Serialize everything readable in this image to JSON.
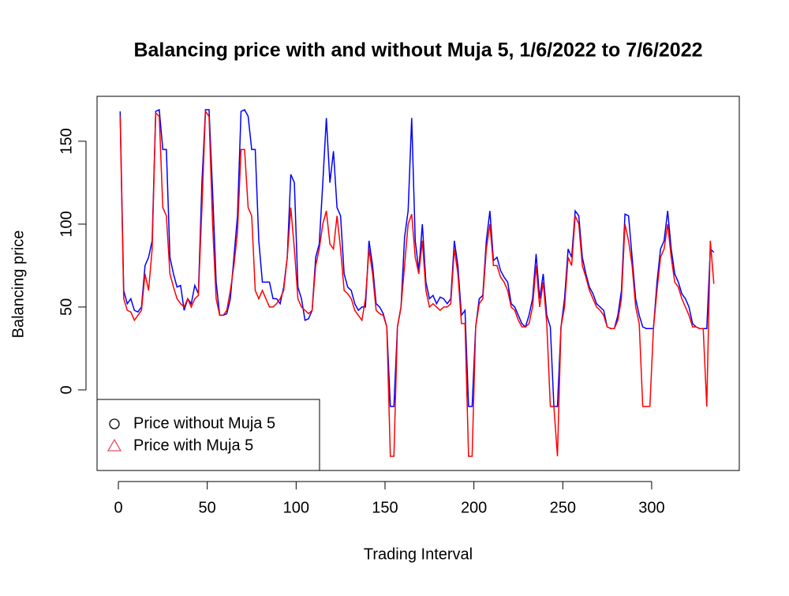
{
  "chart_data": {
    "type": "line",
    "title": "Balancing price with and without Muja 5, 1/6/2022 to 7/6/2022",
    "x_label": "Trading Interval",
    "y_label": "Balancing price",
    "x": [
      1,
      3,
      5,
      7,
      9,
      11,
      13,
      15,
      17,
      19,
      21,
      23,
      25,
      27,
      29,
      31,
      33,
      35,
      37,
      39,
      41,
      43,
      45,
      47,
      49,
      51,
      53,
      55,
      57,
      59,
      61,
      63,
      65,
      67,
      69,
      71,
      73,
      75,
      77,
      79,
      81,
      83,
      85,
      87,
      89,
      91,
      93,
      95,
      97,
      99,
      101,
      103,
      105,
      107,
      109,
      111,
      113,
      115,
      117,
      119,
      121,
      123,
      125,
      127,
      129,
      131,
      133,
      135,
      137,
      139,
      141,
      143,
      145,
      147,
      149,
      151,
      153,
      155,
      157,
      159,
      161,
      163,
      165,
      167,
      169,
      171,
      173,
      175,
      177,
      179,
      181,
      183,
      185,
      187,
      189,
      191,
      193,
      195,
      197,
      199,
      201,
      203,
      205,
      207,
      209,
      211,
      213,
      215,
      217,
      219,
      221,
      223,
      225,
      227,
      229,
      231,
      233,
      235,
      237,
      239,
      241,
      243,
      245,
      247,
      249,
      251,
      253,
      255,
      257,
      259,
      261,
      263,
      265,
      267,
      269,
      271,
      273,
      275,
      277,
      279,
      281,
      283,
      285,
      287,
      289,
      291,
      293,
      295,
      297,
      299,
      301,
      303,
      305,
      307,
      309,
      311,
      313,
      315,
      317,
      319,
      321,
      323,
      325,
      327,
      329,
      331,
      333,
      335
    ],
    "series": [
      {
        "name": "Price without Muja 5",
        "color": "#0000ff",
        "marker": "circle",
        "legend_marker_color": "#000000",
        "values": [
          168,
          60,
          52,
          55,
          48,
          47,
          50,
          75,
          80,
          90,
          168,
          169,
          145,
          145,
          80,
          70,
          62,
          63,
          48,
          55,
          52,
          63,
          58,
          125,
          169,
          169,
          120,
          65,
          45,
          45,
          46,
          55,
          80,
          105,
          168,
          169,
          165,
          145,
          145,
          90,
          65,
          65,
          65,
          55,
          55,
          52,
          62,
          80,
          130,
          125,
          62,
          55,
          42,
          43,
          48,
          80,
          88,
          125,
          164,
          125,
          144,
          110,
          105,
          70,
          62,
          60,
          52,
          48,
          50,
          50,
          90,
          75,
          52,
          50,
          46,
          38,
          -10,
          -10,
          38,
          50,
          92,
          108,
          164,
          90,
          72,
          100,
          65,
          55,
          57,
          52,
          56,
          55,
          52,
          55,
          90,
          75,
          45,
          48,
          -10,
          -10,
          38,
          55,
          57,
          90,
          108,
          78,
          80,
          72,
          68,
          65,
          52,
          50,
          45,
          40,
          38,
          45,
          55,
          82,
          55,
          70,
          45,
          38,
          -10,
          -10,
          38,
          55,
          85,
          80,
          108,
          105,
          80,
          70,
          62,
          58,
          52,
          50,
          48,
          38,
          37,
          37,
          45,
          60,
          106,
          105,
          80,
          55,
          45,
          38,
          37,
          37,
          37,
          65,
          85,
          90,
          108,
          85,
          70,
          65,
          58,
          55,
          50,
          40,
          38,
          37,
          37,
          37,
          85,
          83
        ]
      },
      {
        "name": "Price with Muja 5",
        "color": "#ff0000",
        "marker": "triangle",
        "legend_marker_color": "#df536b",
        "values": [
          165,
          55,
          48,
          47,
          42,
          45,
          48,
          70,
          60,
          85,
          167,
          165,
          110,
          105,
          70,
          62,
          55,
          52,
          50,
          55,
          50,
          55,
          57,
          110,
          168,
          165,
          100,
          55,
          45,
          45,
          48,
          60,
          75,
          95,
          145,
          145,
          110,
          105,
          60,
          55,
          60,
          55,
          50,
          50,
          52,
          55,
          60,
          80,
          110,
          85,
          55,
          50,
          48,
          46,
          48,
          75,
          85,
          100,
          108,
          88,
          85,
          105,
          85,
          60,
          58,
          55,
          48,
          45,
          42,
          55,
          85,
          70,
          48,
          46,
          45,
          38,
          -40,
          -40,
          38,
          50,
          75,
          100,
          106,
          80,
          70,
          90,
          60,
          50,
          52,
          50,
          48,
          50,
          50,
          52,
          85,
          70,
          40,
          40,
          -40,
          -40,
          38,
          52,
          55,
          85,
          100,
          75,
          75,
          68,
          65,
          60,
          50,
          48,
          42,
          38,
          38,
          40,
          50,
          75,
          50,
          65,
          40,
          -10,
          -10,
          -40,
          38,
          50,
          80,
          75,
          105,
          100,
          75,
          68,
          60,
          55,
          50,
          48,
          45,
          38,
          37,
          37,
          42,
          55,
          100,
          90,
          75,
          50,
          40,
          -10,
          -10,
          -10,
          37,
          60,
          80,
          85,
          100,
          80,
          65,
          62,
          55,
          50,
          45,
          38,
          38,
          37,
          37,
          -10,
          90,
          64
        ]
      }
    ],
    "xlim": [
      -12,
      349.3
    ],
    "ylim": [
      -48.6,
      177.1
    ],
    "xticks": [
      0,
      50,
      100,
      150,
      200,
      250,
      300
    ],
    "yticks": [
      0,
      50,
      100,
      150
    ],
    "legend_position": "bottomleft"
  }
}
